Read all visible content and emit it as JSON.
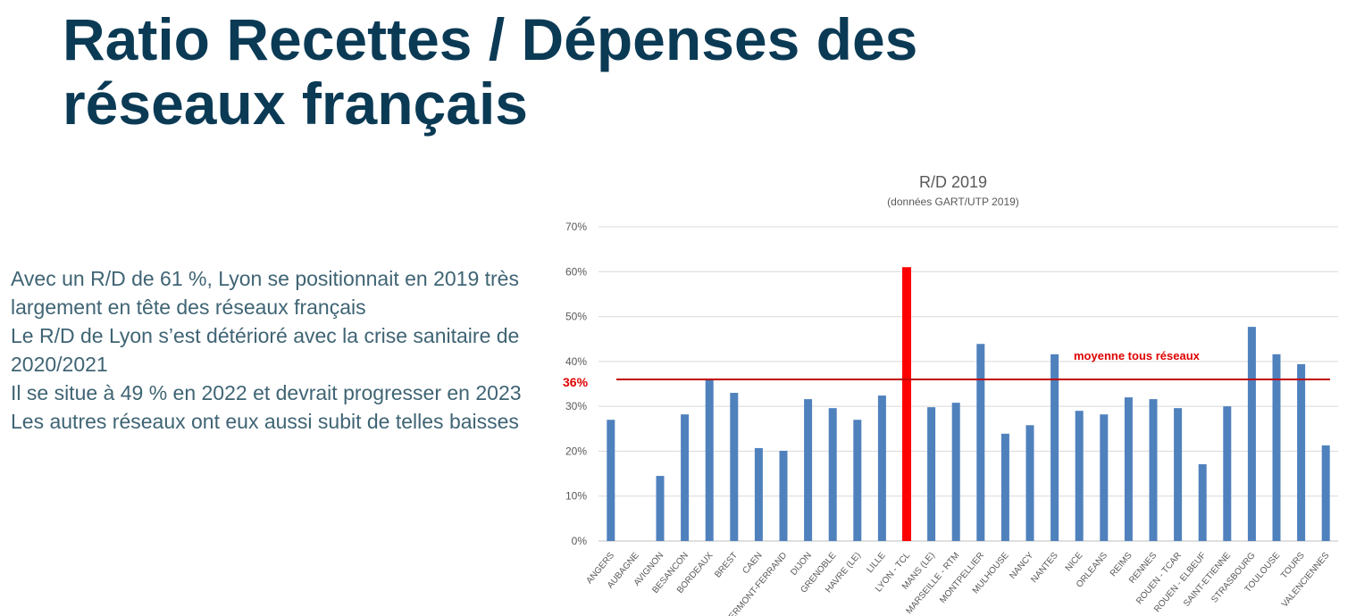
{
  "page": {
    "title_line1": "Ratio Recettes / Dépenses des",
    "title_line2": "réseaux français",
    "bullets": [
      "Avec un R/D de 61 %, Lyon se positionnait en 2019 très largement en tête des réseaux français",
      "Le R/D de Lyon s’est détérioré avec la crise sanitaire de 2020/2021",
      "Il se situe à 49 % en 2022 et devrait progresser en 2023",
      "Les autres réseaux ont eux aussi subit de telles baisses"
    ]
  },
  "chart_data": {
    "type": "bar",
    "title": "R/D 2019",
    "subtitle": "(données GART/UTP 2019)",
    "xlabel": "",
    "ylabel": "",
    "ylim": [
      0,
      70
    ],
    "yticks": [
      "0%",
      "10%",
      "20%",
      "30%",
      "40%",
      "50%",
      "60%",
      "70%"
    ],
    "grid": true,
    "categories": [
      "ANGERS",
      "AUBAGNE",
      "AVIGNON",
      "BESANCON",
      "BORDEAUX",
      "BREST",
      "CAEN",
      "CLERMONT-FERRAND",
      "DIJON",
      "GRENOBLE",
      "HAVRE (LE)",
      "LILLE",
      "LYON - TCL",
      "MANS (LE)",
      "MARSEILLE - RTM",
      "MONTPELLIER",
      "MULHOUSE",
      "NANCY",
      "NANTES",
      "NICE",
      "ORLEANS",
      "REIMS",
      "RENNES",
      "ROUEN - TCAR",
      "ROUEN - ELBEUF",
      "SAINT-ETIENNE",
      "STRASBOURG",
      "TOULOUSE",
      "TOURS",
      "VALENCIENNES"
    ],
    "values": [
      27,
      0,
      14.5,
      28.2,
      36,
      33,
      20.7,
      20.1,
      31.6,
      29.6,
      27,
      32.4,
      61,
      29.8,
      30.8,
      43.9,
      23.9,
      25.8,
      41.6,
      29,
      28.2,
      32,
      31.6,
      29.6,
      17.1,
      30,
      47.7,
      41.6,
      39.4,
      21.3
    ],
    "highlight": "LYON - TCL",
    "colors": {
      "bar": "#4f81bd",
      "highlight": "#ff0000",
      "average": "#c00000",
      "annotation": "#e00000"
    },
    "average": {
      "value": 36,
      "label": "36%",
      "annotation": "moyenne tous réseaux"
    }
  }
}
